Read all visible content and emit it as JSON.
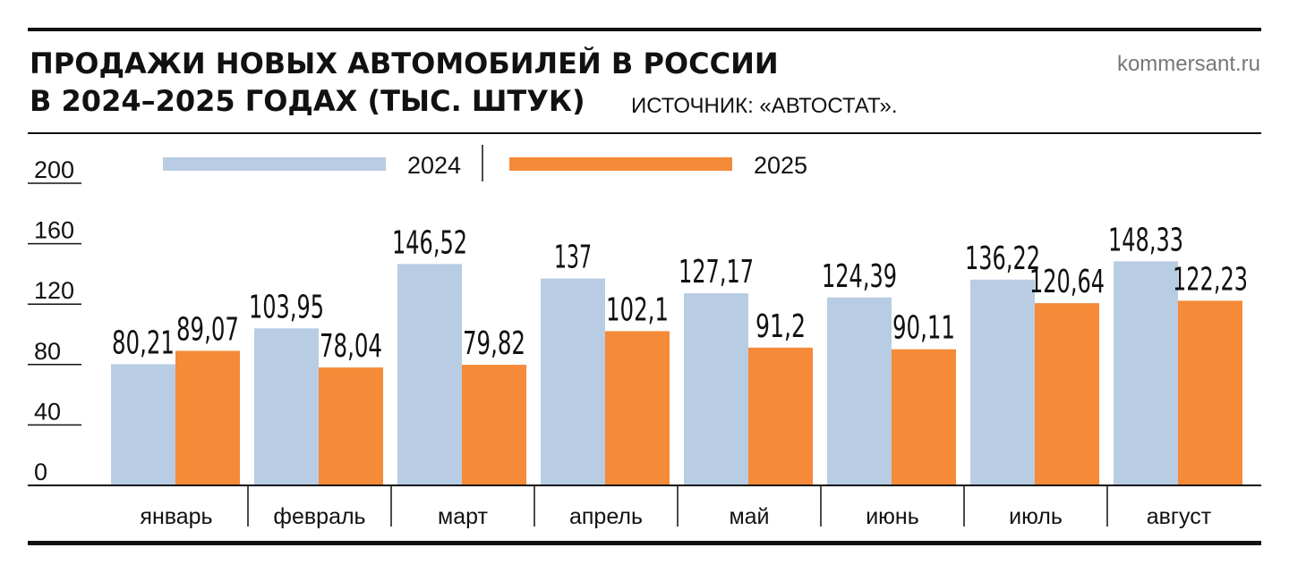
{
  "header": {
    "title_line1": "ПРОДАЖИ НОВЫХ АВТОМОБИЛЕЙ В РОССИИ",
    "title_line2": "В 2024–2025 ГОДАХ (ТЫС. ШТУК)",
    "source": "ИСТОЧНИК: «АВТОСТАТ».",
    "site": "kommersant.ru"
  },
  "colors": {
    "series_2024": "#b8cde4",
    "series_2025": "#f58a38",
    "rule": "#111111"
  },
  "chart_data": {
    "type": "bar",
    "title": "ПРОДАЖИ НОВЫХ АВТОМОБИЛЕЙ В РОССИИ В 2024–2025 ГОДАХ (ТЫС. ШТУК)",
    "categories": [
      "январь",
      "февраль",
      "март",
      "апрель",
      "май",
      "июнь",
      "июль",
      "август"
    ],
    "series": [
      {
        "name": "2024",
        "values": [
          80.21,
          103.95,
          146.52,
          137,
          127.17,
          124.39,
          136.22,
          148.33
        ],
        "labels": [
          "80,21",
          "103,95",
          "146,52",
          "137",
          "127,17",
          "124,39",
          "136,22",
          "148,33"
        ]
      },
      {
        "name": "2025",
        "values": [
          89.07,
          78.04,
          79.82,
          102.1,
          91.2,
          90.11,
          120.64,
          122.23
        ],
        "labels": [
          "89,07",
          "78,04",
          "79,82",
          "102,1",
          "91,2",
          "90,11",
          "120,64",
          "122,23"
        ]
      }
    ],
    "yticks": [
      0,
      40,
      80,
      120,
      160,
      200
    ],
    "ylim": [
      0,
      200
    ],
    "xlabel": "",
    "ylabel": "",
    "legend": "top",
    "grid": false
  }
}
